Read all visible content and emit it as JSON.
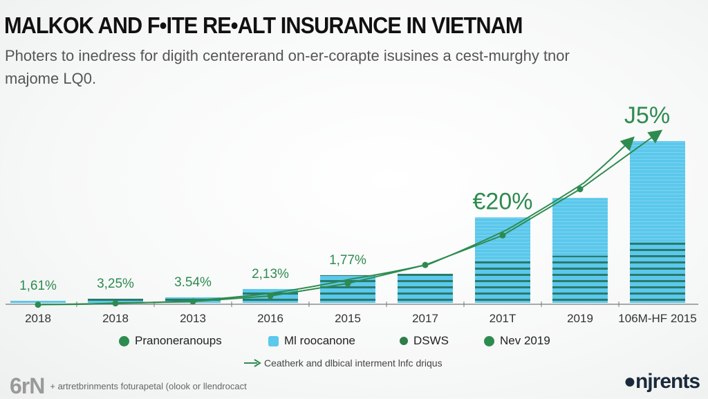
{
  "header": {
    "title": "MALKOK AND F•ITE RE•ALT INSURANCE IN VIETNAM",
    "subtitle": "Photers to inedress for digith centererand on-er-corapte isusines a cest-murghy tnor majome LQ0."
  },
  "chart_data": {
    "type": "bar",
    "title": "",
    "xlabel": "",
    "ylabel": "",
    "ylim": [
      0,
      35
    ],
    "grid": false,
    "categories": [
      "2018",
      "2018",
      "2013",
      "2016",
      "2015",
      "2017",
      "201T",
      "2019",
      "106M-HF 2015"
    ],
    "bar_values": [
      0.45,
      0.9,
      1.2,
      3.0,
      6.0,
      6.3,
      18.5,
      22.7,
      35.0
    ],
    "bar_striped_portion": [
      1.0,
      1.0,
      1.0,
      1.0,
      1.0,
      1.0,
      0.5,
      0.45,
      0.38
    ],
    "data_labels": [
      "1,61%",
      "3,25%",
      "3.54%",
      "2,13%",
      "1,77%",
      "",
      "€20%",
      "",
      "J5%"
    ],
    "lines": [
      {
        "values": [
          -0.4,
          -0.1,
          0.3,
          1.5,
          4.2,
          8.2,
          14.6,
          24.6,
          35.9
        ],
        "markers": true,
        "arrow_end": true
      },
      {
        "values": [
          -0.3,
          0.0,
          0.6,
          2.2,
          5.2,
          8.4,
          15.8,
          26.0,
          35.0
        ],
        "markers": false,
        "arrow_end": true
      }
    ],
    "legend": {
      "placement": "bottom",
      "items": [
        {
          "label": "Pranoneranoups",
          "color": "#2e8b4f"
        },
        {
          "label": "Ml roocanone",
          "color": "#5bc8ec"
        },
        {
          "label": "DSWS",
          "color": "#2e7d4a"
        },
        {
          "label": "Nev 2019",
          "color": "#2e8b4f"
        }
      ]
    },
    "annotation": "Ceatherk and dlbical interment lnfc driqus"
  },
  "colors": {
    "bar": "#5bc8ec",
    "stripe": "#2a7a6a",
    "line": "#2e8b4f",
    "label": "#2e8b4f"
  },
  "footer": {
    "logo": "6rN",
    "text": "+ artretbrinments foturapetal (olook or llendrocact",
    "brand": "●njrents"
  }
}
